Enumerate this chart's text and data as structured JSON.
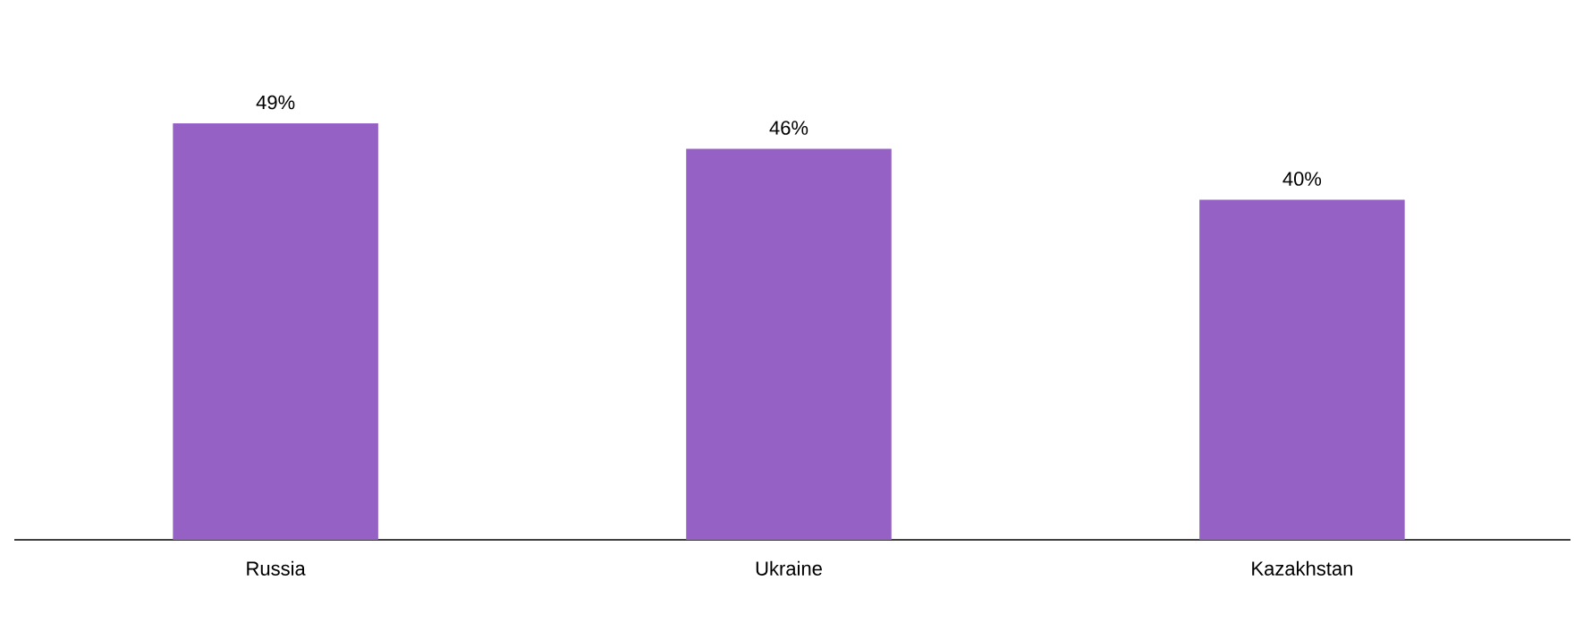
{
  "chart_data": {
    "type": "bar",
    "categories": [
      "Russia",
      "Ukraine",
      "Kazakhstan"
    ],
    "values": [
      49,
      46,
      40
    ],
    "value_labels": [
      "49%",
      "46%",
      "40%"
    ],
    "color": "#9661c4"
  }
}
